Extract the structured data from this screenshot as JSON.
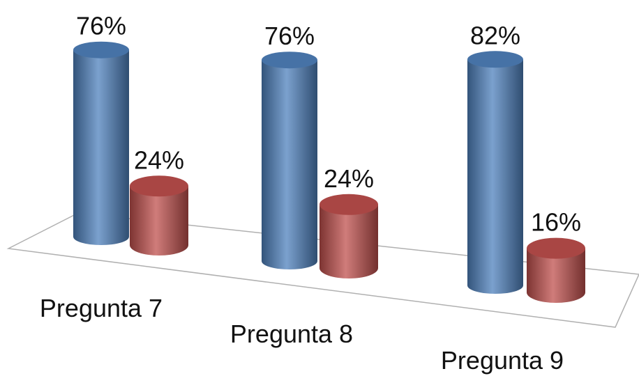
{
  "chart_data": {
    "type": "cylinder",
    "categories": [
      "Pregunta 7",
      "Pregunta 8",
      "Pregunta 9"
    ],
    "series": [
      {
        "color": "#4f81bd",
        "values": [
          76,
          76,
          82
        ],
        "value_labels": [
          "76%",
          "76%",
          "82%"
        ]
      },
      {
        "color": "#c0504d",
        "values": [
          24,
          24,
          16
        ],
        "value_labels": [
          "24%",
          "24%",
          "16%"
        ]
      }
    ]
  }
}
